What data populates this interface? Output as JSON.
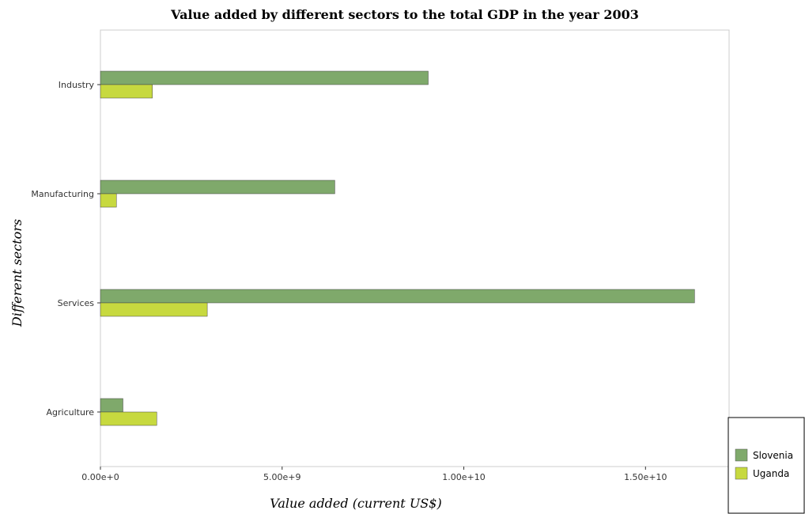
{
  "chart_data": {
    "type": "bar",
    "orientation": "horizontal",
    "title": "Value added by different sectors to the total GDP in the year 2003",
    "xlabel": "Value added (current US$)",
    "ylabel": "Different sectors",
    "categories": [
      "Industry",
      "Manufacturing",
      "Services",
      "Agriculture"
    ],
    "series": [
      {
        "name": "Slovenia",
        "color": "#7fa96b",
        "values": [
          9020000000,
          6450000000,
          16350000000,
          620000000
        ]
      },
      {
        "name": "Uganda",
        "color": "#c7d93f",
        "values": [
          1430000000,
          440000000,
          2940000000,
          1550000000
        ]
      }
    ],
    "xlim": [
      0,
      17300000000
    ],
    "xticks": [
      0,
      5000000000,
      10000000000,
      15000000000
    ],
    "xtick_labels": [
      "0.00e+0",
      "5.00e+9",
      "1.00e+10",
      "1.50e+10"
    ],
    "grid": false,
    "legend_position": "bottom-right"
  }
}
